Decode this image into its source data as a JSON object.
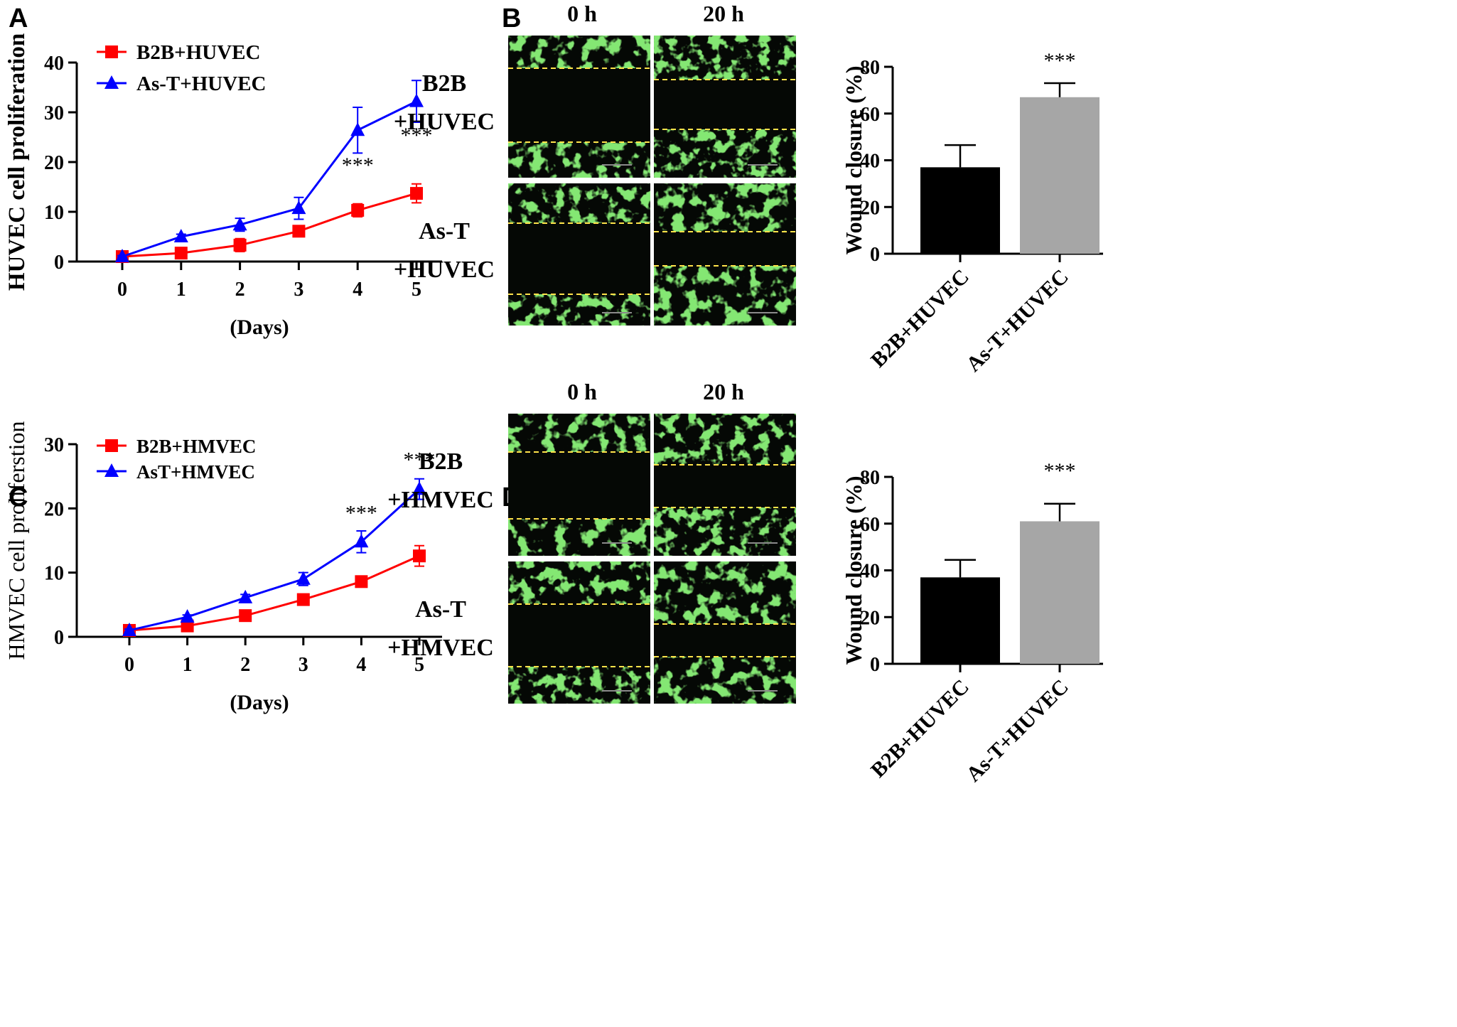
{
  "panels": {
    "A": "A",
    "B": "B",
    "C": "C",
    "D": "D"
  },
  "micrographs": {
    "B": {
      "col_labels": [
        "0 h",
        "20 h"
      ],
      "row_labels": [
        [
          "B2B",
          "+HUVEC"
        ],
        [
          "As-T",
          "+HUVEC"
        ]
      ],
      "wound_edges": [
        [
          [
            0.23,
            0.75
          ],
          [
            0.31,
            0.66
          ]
        ],
        [
          [
            0.28,
            0.78
          ],
          [
            0.34,
            0.58
          ]
        ]
      ]
    },
    "D": {
      "col_labels": [
        "0 h",
        "20 h"
      ],
      "row_labels": [
        [
          "B2B",
          "+HMVEC"
        ],
        [
          "As-T",
          "+HMVEC"
        ]
      ],
      "wound_edges": [
        [
          [
            0.27,
            0.74
          ],
          [
            0.36,
            0.66
          ]
        ],
        [
          [
            0.3,
            0.74
          ],
          [
            0.44,
            0.67
          ]
        ]
      ]
    },
    "colors": {
      "cells": "#3ccc2c",
      "background": "#050805",
      "wound_line": "#ffe34a"
    }
  },
  "chart_data": [
    {
      "id": "A",
      "type": "line",
      "x": [
        0,
        1,
        2,
        3,
        4,
        5
      ],
      "xlabel": "(Days)",
      "ylabel": "HUVEC cell proliferation",
      "ylim": [
        0,
        40
      ],
      "yticks": [
        0,
        10,
        20,
        30,
        40
      ],
      "legend": "top-left",
      "series": [
        {
          "name": "B2B+HUVEC",
          "marker": "square",
          "color": "#ff0000",
          "values": [
            1,
            1.7,
            3.3,
            6.1,
            10.3,
            13.7
          ],
          "errors": [
            0.2,
            0.4,
            1.3,
            0.5,
            1.3,
            1.9
          ]
        },
        {
          "name": "As-T+HUVEC",
          "marker": "triangle",
          "color": "#0000ff",
          "values": [
            1,
            5,
            7.4,
            10.7,
            26.4,
            32.2
          ],
          "errors": [
            0.2,
            0.5,
            1.3,
            2.2,
            4.6,
            4.2
          ]
        }
      ],
      "annotations": [
        {
          "x": 4,
          "y": 18,
          "text": "***"
        },
        {
          "x": 5,
          "y": 24,
          "text": "***"
        }
      ]
    },
    {
      "id": "B-bar",
      "type": "bar",
      "categories": [
        "B2B+HUVEC",
        "As-T+HUVEC"
      ],
      "values": [
        37,
        67
      ],
      "errors": [
        9.5,
        6
      ],
      "colors": [
        "#000000",
        "#a6a6a6"
      ],
      "ylabel": "Wound closure (%)",
      "ylim": [
        0,
        80
      ],
      "yticks": [
        0,
        20,
        40,
        60,
        80
      ],
      "annotations": [
        {
          "index": 1,
          "text": "***"
        }
      ]
    },
    {
      "id": "C",
      "type": "line",
      "x": [
        0,
        1,
        2,
        3,
        4,
        5
      ],
      "xlabel": "(Days)",
      "ylabel": "HMVEC cell proliferstion",
      "ylim": [
        0,
        30
      ],
      "yticks": [
        0,
        10,
        20,
        30
      ],
      "legend": "top-left",
      "series": [
        {
          "name": "B2B+HMVEC",
          "marker": "square",
          "color": "#ff0000",
          "values": [
            1,
            1.7,
            3.3,
            5.8,
            8.6,
            12.6
          ],
          "errors": [
            0.2,
            0.3,
            0.4,
            0.8,
            0.6,
            1.6
          ]
        },
        {
          "name": "AsT+HMVEC",
          "marker": "triangle",
          "color": "#0000ff",
          "values": [
            1,
            3.1,
            6.1,
            9,
            14.8,
            23
          ],
          "errors": [
            0.2,
            0.3,
            0.5,
            1,
            1.7,
            1.6
          ]
        }
      ],
      "annotations": [
        {
          "x": 4,
          "y": 18.2,
          "text": "***"
        },
        {
          "x": 5,
          "y": 26.5,
          "text": "***"
        }
      ]
    },
    {
      "id": "D-bar",
      "type": "bar",
      "categories": [
        "B2B+HUVEC",
        "As-T+HUVEC"
      ],
      "values": [
        37,
        61
      ],
      "errors": [
        7.5,
        7.5
      ],
      "colors": [
        "#000000",
        "#a6a6a6"
      ],
      "ylabel": "Wound closure (%)",
      "ylim": [
        0,
        80
      ],
      "yticks": [
        0,
        20,
        40,
        60,
        80
      ],
      "annotations": [
        {
          "index": 1,
          "text": "***"
        }
      ]
    }
  ]
}
